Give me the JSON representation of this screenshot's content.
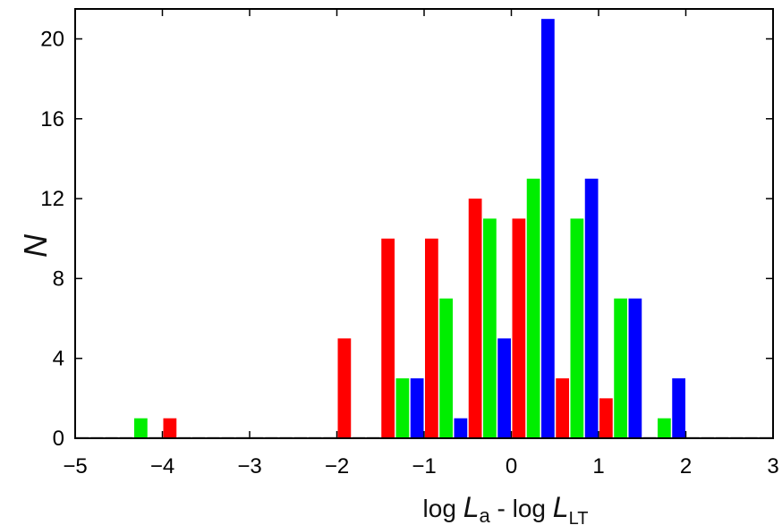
{
  "chart_data": {
    "type": "bar",
    "title": "",
    "xlim": [
      -5,
      3
    ],
    "ylim": [
      0,
      21.5
    ],
    "x_ticks": [
      "−5",
      "−4",
      "−3",
      "−2",
      "−1",
      "0",
      "1",
      "2",
      "3"
    ],
    "y_ticks": [
      "0",
      "4",
      "8",
      "12",
      "16",
      "20"
    ],
    "xlabel": {
      "part1": "log ",
      "L1": "L",
      "sub1": "a",
      "part2": " - log ",
      "L2": "L",
      "sub2": "LT"
    },
    "ylabel": "N",
    "grid": false,
    "legend": "none",
    "bin_width": 0.5,
    "bin_centers": [
      -4.75,
      -4.25,
      -3.75,
      -3.25,
      -2.75,
      -2.25,
      -1.75,
      -1.25,
      -0.75,
      -0.25,
      0.25,
      0.75,
      1.25,
      1.75,
      2.25,
      2.75
    ],
    "series": [
      {
        "color": "#ff0000",
        "values": [
          0,
          0,
          1,
          0,
          0,
          0,
          5,
          10,
          10,
          12,
          11,
          3,
          2,
          0,
          0,
          0
        ]
      },
      {
        "color": "#00ee00",
        "values": [
          0,
          1,
          0,
          0,
          0,
          0,
          0,
          3,
          7,
          11,
          13,
          11,
          7,
          1,
          0,
          0
        ]
      },
      {
        "color": "#0000ff",
        "values": [
          0,
          0,
          0,
          0,
          0,
          0,
          0,
          3,
          1,
          5,
          21,
          13,
          7,
          3,
          0,
          0
        ]
      }
    ],
    "zero_bar_color": "#aaaaaa"
  }
}
